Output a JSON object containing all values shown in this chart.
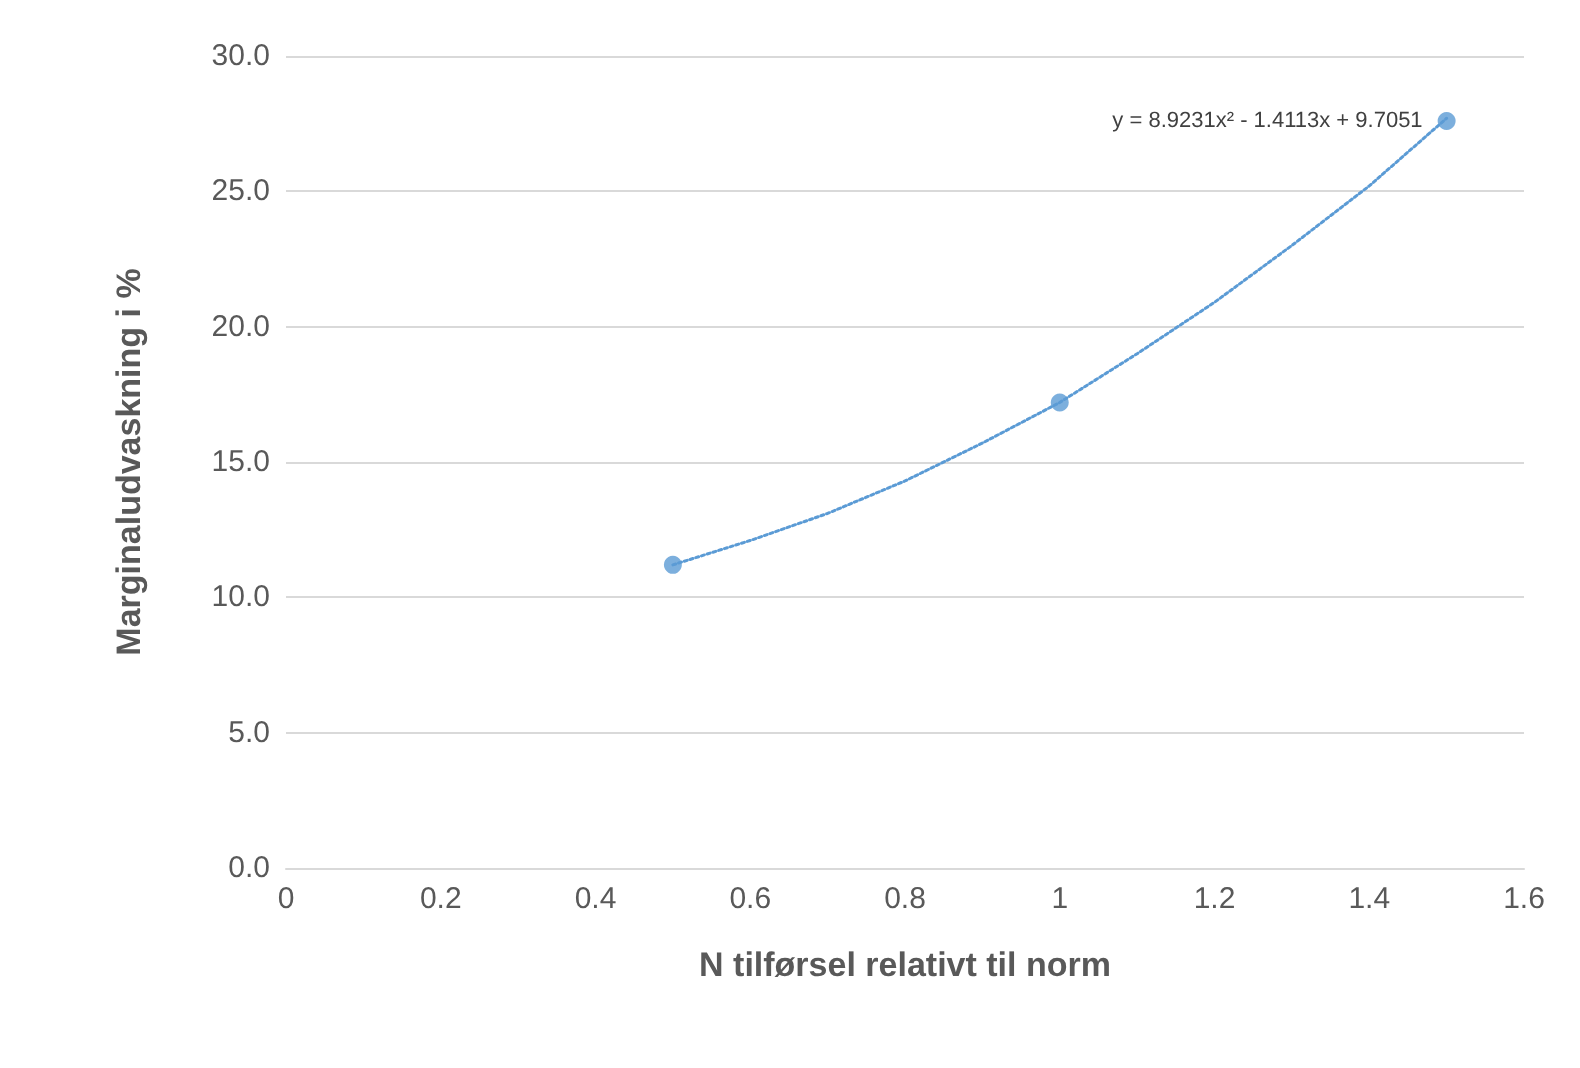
{
  "chart_data": {
    "type": "scatter",
    "xlabel": "N tilførsel relativt til norm",
    "ylabel": "Marginaludvaskning i %",
    "xlim": [
      0,
      1.6
    ],
    "xticks": [
      0,
      0.2,
      0.4,
      0.6,
      0.8,
      1,
      1.2,
      1.4,
      1.6
    ],
    "ylim": [
      0,
      30
    ],
    "yticks": [
      {
        "value": 0,
        "label": "0.0"
      },
      {
        "value": 5,
        "label": "5.0"
      },
      {
        "value": 10,
        "label": "10.0"
      },
      {
        "value": 15,
        "label": "15.0"
      },
      {
        "value": 20,
        "label": "20.0"
      },
      {
        "value": 25,
        "label": "25.0"
      },
      {
        "value": 30,
        "label": "30.0"
      }
    ],
    "grid": "y",
    "marker": "circle",
    "annotations": [
      {
        "text": "y = 8.9231x² - 1.4113x + 9.7051",
        "x": 1.5,
        "y": 27.6
      }
    ],
    "series": [
      {
        "color": "#5b9bd5",
        "x": [
          0.5,
          1,
          1.5
        ],
        "values": [
          11.2,
          17.2,
          27.6
        ]
      },
      {
        "type": "line",
        "color": "#5b9bd5",
        "line_style": "dotted",
        "marker": "none",
        "x": [
          0.5,
          0.6,
          0.7,
          0.8,
          0.9,
          1,
          1.1,
          1.2,
          1.3,
          1.4,
          1.5
        ],
        "values": [
          11.2,
          12.1,
          13.1,
          14.3,
          15.7,
          17.2,
          19.0,
          20.9,
          23.0,
          25.2,
          27.7
        ]
      }
    ]
  }
}
